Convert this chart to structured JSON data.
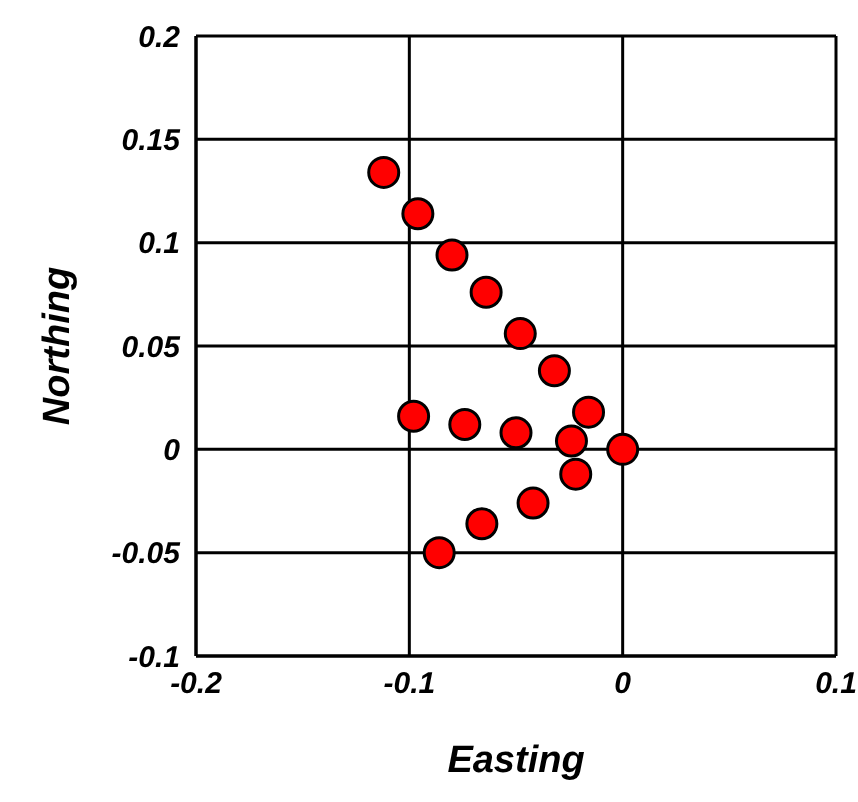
{
  "chart_data": {
    "type": "scatter",
    "xlabel": "Easting",
    "ylabel": "Northing",
    "x": [
      -0.112,
      -0.096,
      -0.08,
      -0.064,
      -0.048,
      -0.032,
      -0.016,
      0,
      -0.024,
      -0.05,
      -0.074,
      -0.098,
      -0.022,
      -0.042,
      -0.066,
      -0.086
    ],
    "series": [
      {
        "color": "#ff0000",
        "values": [
          0.134,
          0.114,
          0.094,
          0.076,
          0.056,
          0.038,
          0.018,
          0,
          0.004,
          0.008,
          0.012,
          0.016,
          -0.012,
          -0.026,
          -0.036,
          -0.05
        ]
      }
    ],
    "xlim": [
      -0.2,
      0.1
    ],
    "xticks": [
      -0.2,
      -0.1,
      0,
      0.1
    ],
    "ylim": [
      -0.1,
      0.2
    ],
    "yticks": [
      -0.1,
      -0.05,
      0,
      0.05,
      0.1,
      0.15,
      0.2
    ],
    "grid": true,
    "marker": "circle"
  }
}
